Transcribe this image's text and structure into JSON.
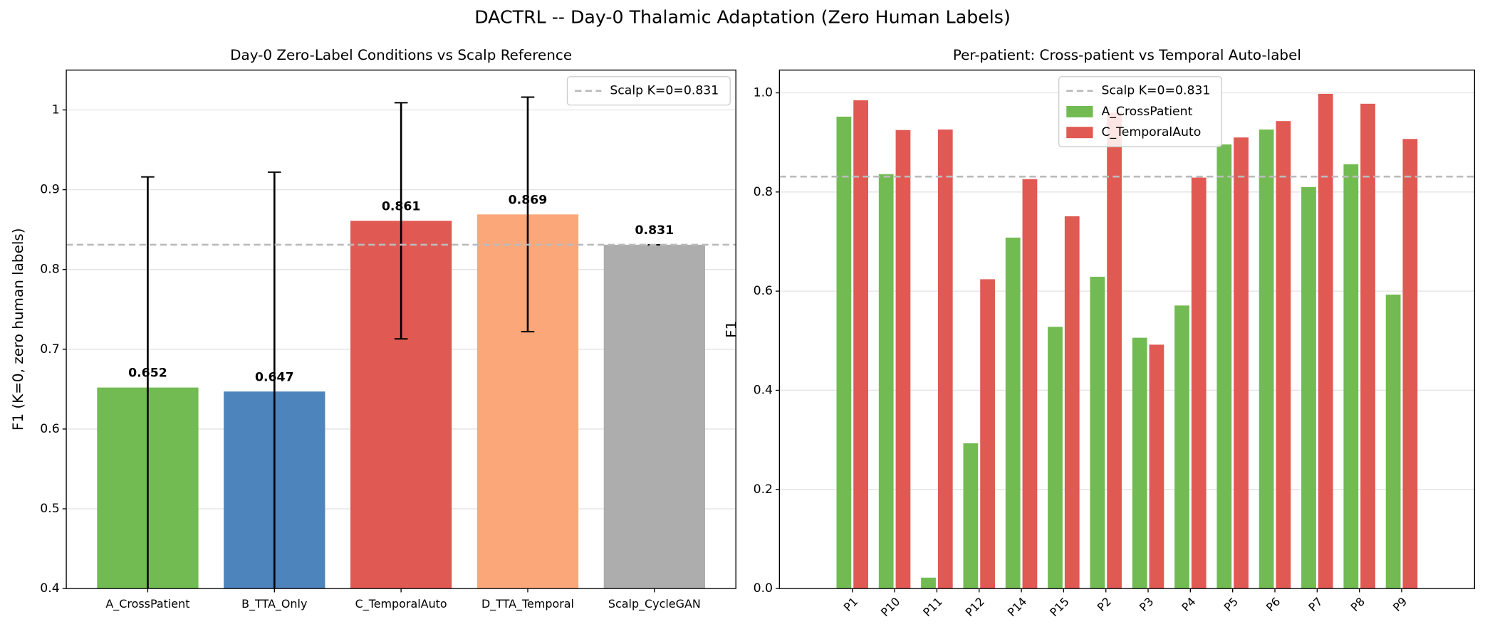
{
  "title": "DACTRL -- Day-0 Thalamic Adaptation (Zero Human Labels)",
  "chart_data": [
    {
      "type": "bar",
      "title": "Day-0 Zero-Label Conditions vs Scalp Reference",
      "ylabel": "F1 (K=0, zero human labels)",
      "categories": [
        "A_CrossPatient",
        "B_TTA_Only",
        "C_TemporalAuto",
        "D_TTA_Temporal",
        "Scalp_CycleGAN"
      ],
      "values": [
        0.652,
        0.647,
        0.861,
        0.869,
        0.831
      ],
      "errors": [
        0.264,
        0.275,
        0.148,
        0.147,
        0
      ],
      "colors": [
        "#72bb53",
        "#4e84bc",
        "#e05a53",
        "#fba77a",
        "#adadad"
      ],
      "reference_line": {
        "value": 0.831,
        "label": "Scalp K=0=0.831",
        "color": "#bbbbbb"
      },
      "ylim": [
        0.4,
        1.05
      ],
      "yticks": [
        0.4,
        0.5,
        0.6,
        0.7,
        0.8,
        0.9,
        1.0
      ],
      "grid": true,
      "legend": "upper right"
    },
    {
      "type": "grouped_bar",
      "title": "Per-patient: Cross-patient vs Temporal Auto-label",
      "ylabel": "F1",
      "categories": [
        "P1",
        "P10",
        "P11",
        "P12",
        "P14",
        "P15",
        "P2",
        "P3",
        "P4",
        "P5",
        "P6",
        "P7",
        "P8",
        "P9"
      ],
      "series": [
        {
          "name": "A_CrossPatient",
          "color": "#72bb53",
          "values": [
            0.952,
            0.836,
            0.022,
            0.293,
            0.708,
            0.528,
            0.629,
            0.506,
            0.571,
            0.896,
            0.926,
            0.81,
            0.856,
            0.593
          ]
        },
        {
          "name": "C_TemporalAuto",
          "color": "#e05a53",
          "values": [
            0.985,
            0.925,
            0.926,
            0.624,
            0.826,
            0.751,
            0.96,
            0.492,
            0.829,
            0.91,
            0.943,
            0.998,
            0.978,
            0.907
          ]
        }
      ],
      "reference_line": {
        "value": 0.831,
        "label": "Scalp K=0=0.831",
        "color": "#bbbbbb"
      },
      "ylim": [
        0,
        1.046
      ],
      "yticks": [
        {
          "value": 0,
          "label": "0.0"
        },
        0.2,
        0.4,
        0.6,
        0.8,
        {
          "value": 1,
          "label": "1.0"
        }
      ],
      "grid": true,
      "legend": "upper center"
    }
  ]
}
